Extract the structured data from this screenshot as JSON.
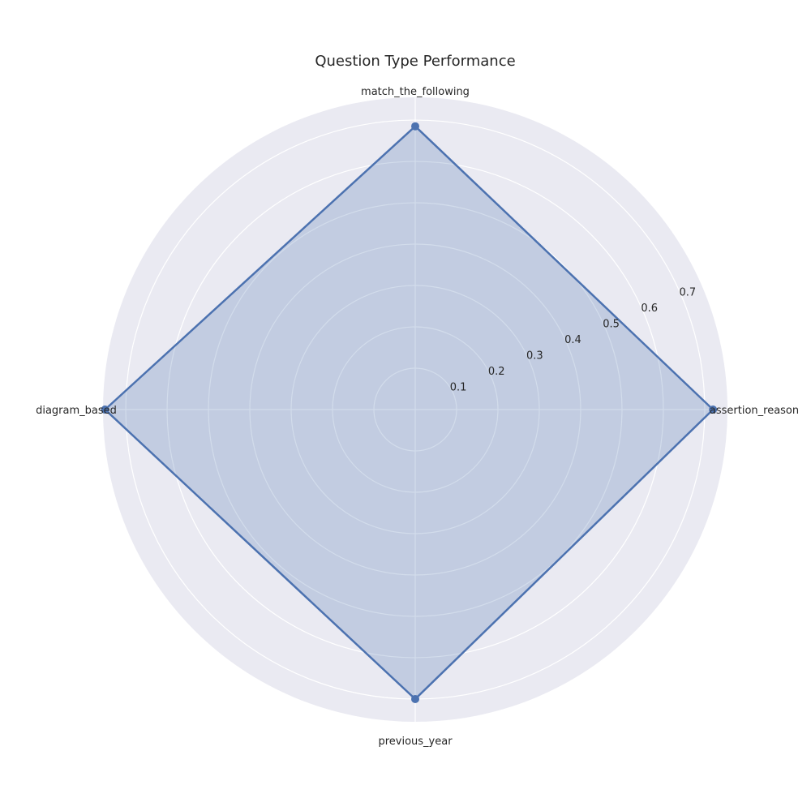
{
  "chart_data": {
    "type": "radar",
    "title": "Question Type Performance",
    "categories": [
      "assertion_reason",
      "match_the_following",
      "diagram_based",
      "previous_year"
    ],
    "series": [
      {
        "values": [
          0.72,
          0.685,
          0.75,
          0.7
        ]
      }
    ],
    "r_ticks": [
      0.1,
      0.2,
      0.3,
      0.4,
      0.5,
      0.6,
      0.7
    ],
    "r_max": 0.755,
    "grid": true,
    "colors": {
      "background": "#eaeaf2",
      "grid": "#ffffff",
      "line": "#4c72b0",
      "fill": "#4c72b0"
    }
  }
}
